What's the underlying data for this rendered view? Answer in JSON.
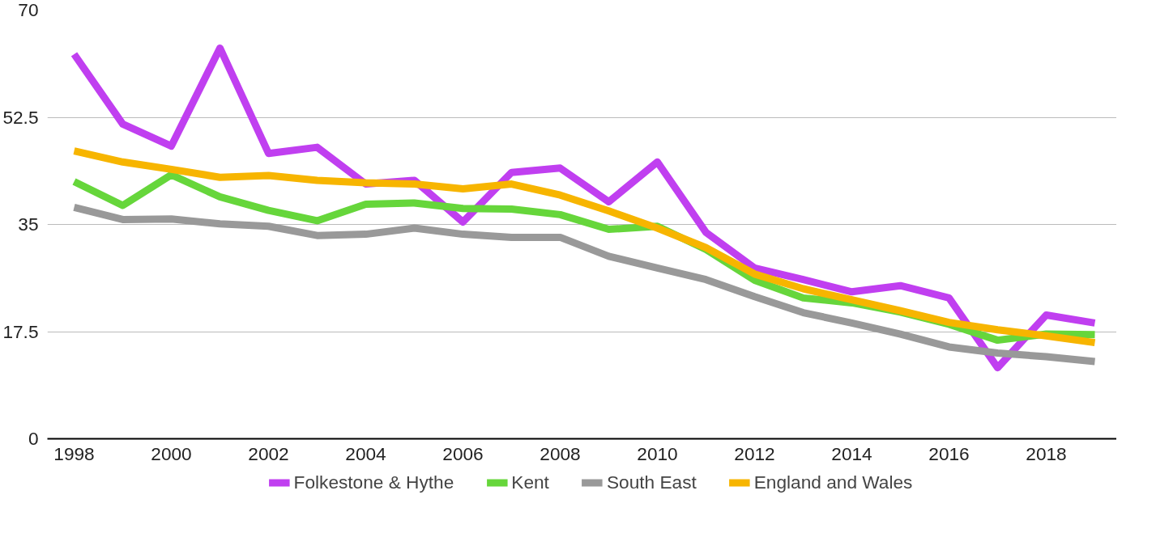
{
  "chart_data": {
    "type": "line",
    "x": [
      1998,
      1999,
      2000,
      2001,
      2002,
      2003,
      2004,
      2005,
      2006,
      2007,
      2008,
      2009,
      2010,
      2011,
      2012,
      2013,
      2014,
      2015,
      2016,
      2017,
      2018,
      2019
    ],
    "series": [
      {
        "name": "Folkestone & Hythe",
        "color": "#c03ff0",
        "values": [
          62.8,
          51.4,
          47.8,
          63.8,
          46.6,
          47.6,
          41.6,
          42.2,
          35.4,
          43.5,
          44.2,
          38.7,
          45.2,
          33.7,
          27.9,
          26.0,
          24.0,
          25.0,
          23.0,
          11.6,
          20.2,
          18.9
        ]
      },
      {
        "name": "Kent",
        "color": "#66d63b",
        "values": [
          42.0,
          38.1,
          43.1,
          39.5,
          37.3,
          35.6,
          38.3,
          38.5,
          37.6,
          37.5,
          36.6,
          34.2,
          34.7,
          30.9,
          25.9,
          23.0,
          22.2,
          20.7,
          18.7,
          16.1,
          17.1,
          17.0
        ]
      },
      {
        "name": "South East",
        "color": "#999999",
        "values": [
          37.8,
          35.8,
          35.9,
          35.1,
          34.7,
          33.2,
          33.4,
          34.4,
          33.4,
          32.9,
          32.9,
          29.8,
          27.9,
          26.0,
          23.2,
          20.6,
          18.9,
          17.1,
          15.0,
          14.0,
          13.4,
          12.6
        ]
      },
      {
        "name": "England and Wales",
        "color": "#f7b500",
        "values": [
          47.0,
          45.2,
          44.0,
          42.7,
          43.0,
          42.2,
          41.8,
          41.6,
          40.8,
          41.6,
          39.8,
          37.2,
          34.4,
          31.2,
          26.9,
          24.5,
          22.7,
          20.9,
          19.0,
          17.8,
          16.8,
          15.7
        ]
      }
    ],
    "xlim": [
      1997.45,
      2019.45
    ],
    "xticks": [
      1998,
      2000,
      2002,
      2004,
      2006,
      2008,
      2010,
      2012,
      2014,
      2016,
      2018
    ],
    "ylim": [
      0,
      70
    ],
    "yticks": [
      0,
      17.5,
      35,
      52.5,
      70
    ],
    "grid": "y",
    "legend": "bottom",
    "marker": "none",
    "line_style": "solid"
  }
}
